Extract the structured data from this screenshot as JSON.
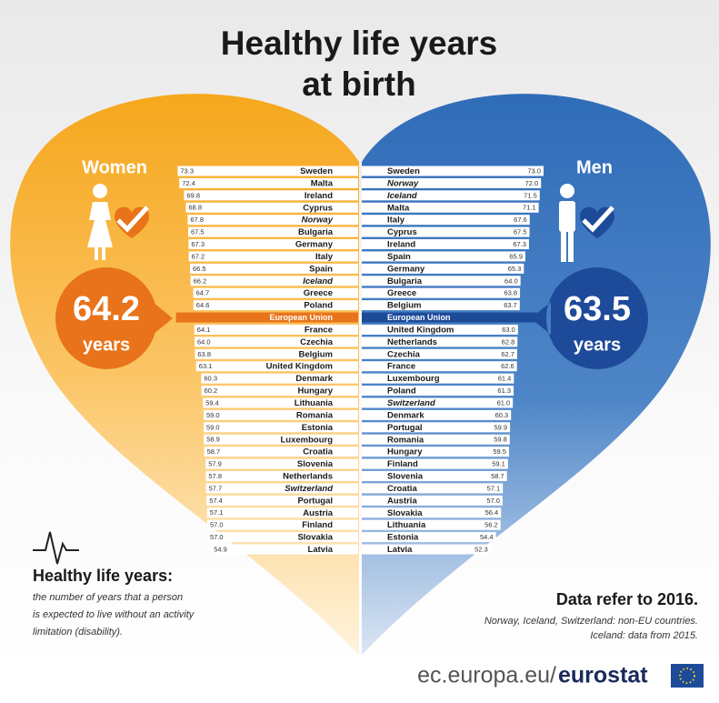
{
  "title": [
    "Healthy life years",
    "at birth"
  ],
  "chart_data": [
    {
      "type": "bar",
      "name": "Women",
      "color": "#ffffff",
      "eu_color": "#e8731a",
      "direction": "left",
      "xlim": [
        -26,
        74
      ],
      "categories": [
        "Sweden",
        "Malta",
        "Ireland",
        "Cyprus",
        "Norway",
        "Bulgaria",
        "Germany",
        "Italy",
        "Spain",
        "Iceland",
        "Greece",
        "Poland",
        "France",
        "Czechia",
        "Belgium",
        "United Kingdom",
        "Denmark",
        "Hungary",
        "Lithuania",
        "Romania",
        "Estonia",
        "Luxembourg",
        "Croatia",
        "Slovenia",
        "Netherlands",
        "Switzerland",
        "Portugal",
        "Austria",
        "Finland",
        "Slovakia",
        "Latvia"
      ],
      "values": [
        73.3,
        72.4,
        69.8,
        68.8,
        67.8,
        67.5,
        67.3,
        67.2,
        66.5,
        66.2,
        64.7,
        64.6,
        64.1,
        64.0,
        63.8,
        63.1,
        60.3,
        60.2,
        59.4,
        59.0,
        59.0,
        58.9,
        58.7,
        57.9,
        57.8,
        57.7,
        57.4,
        57.1,
        57.0,
        57.0,
        54.9
      ],
      "value_labels": [
        "73.3",
        "72.4",
        "69.8",
        "68.8",
        "67.8",
        "67.5",
        "67.3",
        "67.2",
        "66.5",
        "66.2",
        "64.7",
        "64.6",
        "64.1",
        "64.0",
        "63.8",
        "63.1",
        "60.3",
        "60.2",
        "59.4",
        "59.0",
        "59.0",
        "58.9",
        "58.7",
        "57.9",
        "57.8",
        "57.7",
        "57.4",
        "57.1",
        "57.0",
        "57.0",
        "54.9"
      ],
      "eu": {
        "name": "European Union",
        "value": 64.2,
        "unit": "years"
      }
    },
    {
      "type": "bar",
      "name": "Men",
      "color": "#ffffff",
      "eu_color": "#1e4a9a",
      "direction": "right",
      "xlim": [
        2,
        73
      ],
      "categories": [
        "Sweden",
        "Norway",
        "Iceland",
        "Malta",
        "Italy",
        "Cyprus",
        "Ireland",
        "Spain",
        "Germany",
        "Bulgaria",
        "Greece",
        "Belgium",
        "United Kingdom",
        "Netherlands",
        "Czechia",
        "France",
        "Luxembourg",
        "Poland",
        "Switzerland",
        "Denmark",
        "Portugal",
        "Romania",
        "Hungary",
        "Finland",
        "Slovenia",
        "Croatia",
        "Austria",
        "Slovakia",
        "Lithuania",
        "Estonia",
        "Latvia"
      ],
      "values": [
        73.0,
        72.0,
        71.5,
        71.1,
        67.6,
        67.5,
        67.3,
        65.9,
        65.3,
        64.0,
        63.8,
        63.7,
        63.0,
        62.8,
        62.7,
        62.6,
        61.4,
        61.3,
        61.0,
        60.3,
        59.9,
        59.8,
        59.5,
        59.1,
        58.7,
        57.1,
        57.0,
        56.4,
        56.2,
        54.4,
        52.3
      ],
      "value_labels": [
        "73.0",
        "72.0",
        "71.5",
        "71.1",
        "67.6",
        "67.5",
        "67.3",
        "65.9",
        "65.3",
        "64.0",
        "63.8",
        "63.7",
        "63.0",
        "62.8",
        "62.7",
        "62.6",
        "61.4",
        "61.3",
        "61.0",
        "60.3",
        "59.9",
        "59.8",
        "59.5",
        "59.1",
        "58.7",
        "57.1",
        "57.0",
        "56.4",
        "56.2",
        "54.4",
        "52.3"
      ],
      "eu": {
        "name": "European Union",
        "value": 63.5,
        "unit": "years"
      }
    }
  ],
  "definition": {
    "title": "Healthy life years:",
    "lines": [
      "the number of years that a person",
      "is expected to live without an activity",
      "limitation (disability)."
    ]
  },
  "notes": {
    "title": "Data refer to 2016.",
    "lines": [
      "Norway, Iceland, Switzerland: non-EU countries.",
      "Iceland: data from 2015."
    ]
  },
  "footer": {
    "site": "ec.europa.eu/",
    "brand": "eurostat"
  }
}
